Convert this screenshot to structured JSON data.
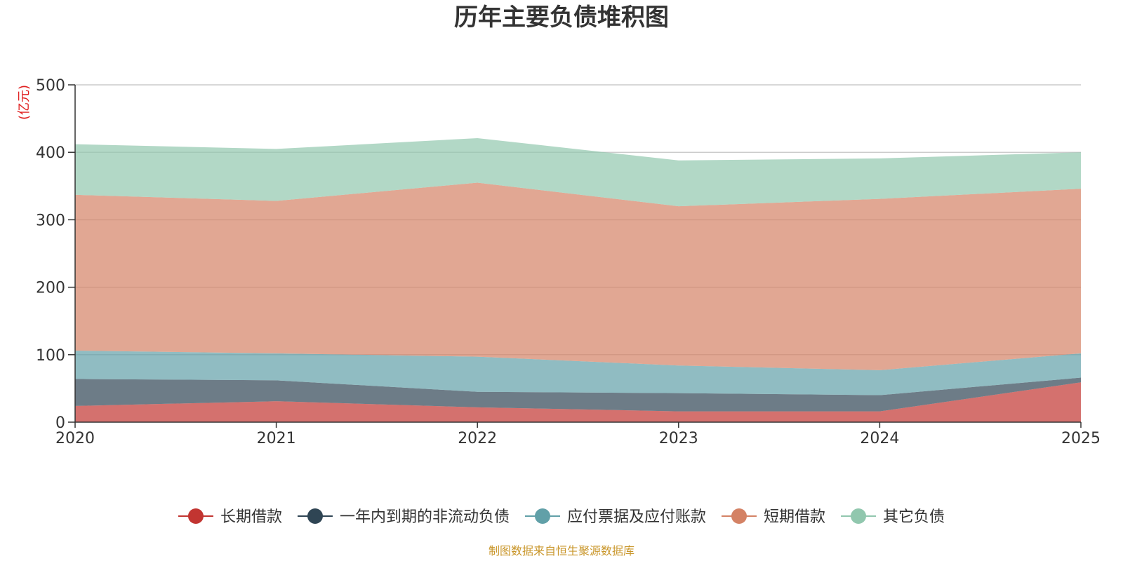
{
  "chart_data": {
    "type": "area",
    "stacked": true,
    "title": "历年主要负债堆积图",
    "unit": "(亿元)",
    "x": [
      "2020",
      "2021",
      "2022",
      "2023",
      "2024",
      "2025"
    ],
    "ylim": [
      0,
      500
    ],
    "yticks": [
      0,
      100,
      200,
      300,
      400,
      500
    ],
    "grid": true,
    "legend_position": "bottom",
    "series": [
      {
        "name": "长期借款",
        "color": "#c23531",
        "values": [
          24,
          31,
          22,
          16,
          16,
          59
        ]
      },
      {
        "name": "一年内到期的非流动负债",
        "color": "#2f4554",
        "values": [
          40,
          31,
          23,
          27,
          24,
          7
        ]
      },
      {
        "name": "应付票据及应付账款",
        "color": "#61a0a8",
        "values": [
          42,
          40,
          52,
          41,
          37,
          36
        ]
      },
      {
        "name": "短期借款",
        "color": "#d48265",
        "values": [
          231,
          226,
          258,
          236,
          254,
          244
        ]
      },
      {
        "name": "其它负债",
        "color": "#91c7ae",
        "values": [
          75,
          77,
          66,
          68,
          60,
          54
        ]
      }
    ],
    "source_note": "制图数据来自恒生聚源数据库"
  }
}
